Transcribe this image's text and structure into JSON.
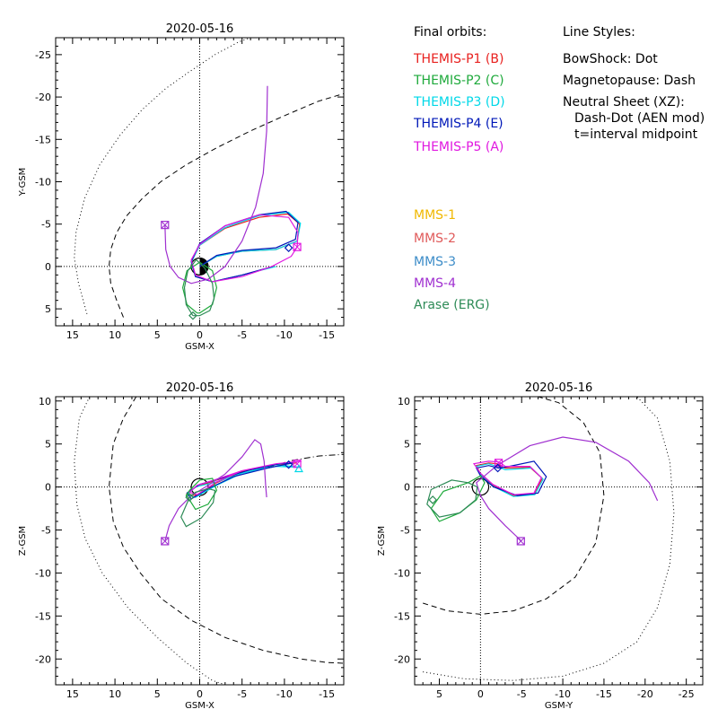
{
  "legend": {
    "orbits_title": "Final orbits:",
    "styles_title": "Line Styles:",
    "orbits": [
      {
        "label": "THEMIS-P1 (B)",
        "color": "#e8201e"
      },
      {
        "label": "THEMIS-P2 (C)",
        "color": "#1faa3c"
      },
      {
        "label": "THEMIS-P3 (D)",
        "color": "#00d8e8"
      },
      {
        "label": "THEMIS-P4 (E)",
        "color": "#0018b8"
      },
      {
        "label": "THEMIS-P5 (A)",
        "color": "#e018e0"
      }
    ],
    "styles": [
      "BowShock: Dot",
      "Magnetopause: Dash",
      "Neutral Sheet (XZ):",
      "Dash-Dot (AEN mod)",
      "t=interval midpoint"
    ],
    "missions": [
      {
        "label": "MMS-1",
        "color": "#f0b800"
      },
      {
        "label": "MMS-2",
        "color": "#e05a5a"
      },
      {
        "label": "MMS-3",
        "color": "#3c8cc8"
      },
      {
        "label": "MMS-4",
        "color": "#a030d0"
      },
      {
        "label": "Arase (ERG)",
        "color": "#2e8b57"
      }
    ]
  },
  "chart_data": [
    {
      "type": "line",
      "title": "2020-05-16",
      "xlabel": "GSM-X",
      "ylabel": "Y-GSM",
      "xlim": [
        17,
        -17
      ],
      "ylim": [
        7,
        -27
      ],
      "xticks": [
        15,
        10,
        5,
        0,
        -5,
        -10,
        -15
      ],
      "yticks": [
        5,
        0,
        -5,
        -10,
        -15,
        -20,
        -25
      ],
      "grid": "zero-lines dotted",
      "earth": {
        "radius": 1,
        "shaded": true
      },
      "boundaries": [
        {
          "name": "BowShock",
          "style": "dot",
          "x": [
            13.3,
            14.3,
            14.8,
            14.6,
            13.6,
            11.8,
            9.4,
            6.8,
            4,
            1.2,
            -1.8,
            -4.6,
            -6
          ],
          "y": [
            5.6,
            2,
            -1,
            -4,
            -8,
            -12,
            -15.5,
            -18.5,
            -21,
            -23,
            -25,
            -26.5,
            -27
          ]
        },
        {
          "name": "Magnetopause",
          "style": "dash",
          "x": [
            9,
            9.8,
            10.5,
            10.7,
            10.5,
            9.8,
            8.6,
            6.8,
            4.6,
            1.6,
            -2,
            -6,
            -10,
            -14,
            -17
          ],
          "y": [
            6,
            4,
            2,
            0,
            -2,
            -4,
            -6,
            -8,
            -10,
            -12,
            -14,
            -16,
            -17.8,
            -19.5,
            -20.4
          ]
        }
      ],
      "series": [
        {
          "name": "THEMIS-P1 (B)",
          "color": "#e8201e",
          "x": [
            -8.8,
            -5,
            -1.5,
            0.5,
            1,
            0,
            -3,
            -7,
            -10.4,
            -11.8,
            -11.5,
            -9,
            -5,
            -2,
            0
          ],
          "y": [
            0,
            1,
            1.8,
            1.2,
            -0.5,
            -2.5,
            -4.5,
            -5.8,
            -6.2,
            -5,
            -3,
            -2,
            -1.8,
            -1.2,
            0
          ]
        },
        {
          "name": "THEMIS-P2 (C)",
          "color": "#1faa3c",
          "x": [
            0.3,
            1.5,
            2,
            1.5,
            0,
            -1.5,
            -2,
            -1.5,
            0,
            0.3
          ],
          "y": [
            5.5,
            4.5,
            2.5,
            0.5,
            -0.5,
            0.5,
            2.5,
            4.5,
            5.5,
            5.5
          ]
        },
        {
          "name": "THEMIS-P3 (D)",
          "color": "#00d8e8",
          "x": [
            -9,
            -5,
            -1.5,
            0.5,
            1,
            0,
            -3,
            -7,
            -10.5,
            -11.9,
            -11.5,
            -9,
            -5,
            -2,
            0
          ],
          "y": [
            0,
            1,
            1.8,
            1.2,
            -0.5,
            -2.5,
            -4.6,
            -6,
            -6.4,
            -5.1,
            -3,
            -2,
            -1.8,
            -1.2,
            0
          ]
        },
        {
          "name": "THEMIS-P4 (E)",
          "color": "#0018b8",
          "x": [
            -8.6,
            -5,
            -1.5,
            0.5,
            1,
            0,
            -3,
            -7,
            -10.2,
            -11.6,
            -11.3,
            -9,
            -5,
            -2,
            0
          ],
          "y": [
            0,
            1,
            1.8,
            1.2,
            -0.6,
            -2.7,
            -4.8,
            -6.1,
            -6.5,
            -5.2,
            -3.2,
            -2.2,
            -1.9,
            -1.3,
            0
          ]
        },
        {
          "name": "THEMIS-P5 (A)",
          "color": "#e018e0",
          "x": [
            -11.5,
            -11.6,
            -10.5,
            -7,
            -3,
            0,
            1,
            0.5,
            -1.5,
            -5,
            -8.5,
            -10.8,
            -11.5
          ],
          "y": [
            -2.3,
            -4,
            -5.8,
            -6.1,
            -4.8,
            -2.6,
            -0.8,
            1,
            1.8,
            1.2,
            0,
            -1.2,
            -2.3
          ]
        },
        {
          "name": "MMS-4",
          "color": "#a030d0",
          "x": [
            4.1,
            4,
            3.5,
            2.5,
            1,
            -1,
            -3,
            -5,
            -6.6,
            -7.5,
            -7.9,
            -8
          ],
          "y": [
            -4.9,
            -2,
            0,
            1.3,
            2,
            1.5,
            0,
            -3,
            -7,
            -11,
            -16,
            -21.3
          ]
        },
        {
          "name": "Arase (ERG)",
          "color": "#2e8b57",
          "x": [
            0.8,
            1.6,
            1.8,
            1.4,
            0.4,
            -0.6,
            -1.5,
            -1.7,
            -1.2,
            0,
            0.8
          ],
          "y": [
            5.8,
            4.5,
            2.5,
            0.5,
            -0.8,
            0.2,
            2,
            3.8,
            5.2,
            5.8,
            5.8
          ]
        }
      ],
      "markers": [
        {
          "series": "MMS-4",
          "symbol": "square",
          "x": 4.1,
          "y": -4.9
        },
        {
          "series": "THEMIS-P5 (A)",
          "symbol": "square",
          "x": -11.5,
          "y": -2.3
        },
        {
          "series": "THEMIS-P4 (E)",
          "symbol": "diamond",
          "x": -10.5,
          "y": -2.2
        },
        {
          "series": "Arase (ERG)",
          "symbol": "diamond",
          "x": 0.8,
          "y": 5.8
        }
      ]
    },
    {
      "type": "line",
      "title": "2020-05-16",
      "xlabel": "GSM-X",
      "ylabel": "Z-GSM",
      "xlim": [
        17,
        -17
      ],
      "ylim": [
        -23,
        10.5
      ],
      "xticks": [
        15,
        10,
        5,
        0,
        -5,
        -10,
        -15
      ],
      "yticks": [
        10,
        5,
        0,
        -5,
        -10,
        -15,
        -20
      ],
      "grid": "zero-lines dotted",
      "earth": {
        "radius": 1,
        "shaded": false
      },
      "boundaries": [
        {
          "name": "BowShock",
          "style": "dot",
          "x": [
            13,
            14.2,
            14.8,
            14.5,
            13.5,
            11.5,
            8.5,
            5,
            1.5,
            -1.5,
            -3
          ],
          "y": [
            10.5,
            8,
            3,
            -2,
            -6,
            -10,
            -14,
            -17.5,
            -20.5,
            -22.5,
            -23
          ]
        },
        {
          "name": "Magnetopause",
          "style": "dash",
          "x": [
            7.5,
            9,
            10.2,
            10.7,
            10.2,
            9,
            7,
            4.5,
            1,
            -3,
            -7.5,
            -12,
            -15,
            -17
          ],
          "y": [
            10.5,
            8,
            5,
            0,
            -4,
            -7,
            -10,
            -13,
            -15.5,
            -17.5,
            -19,
            -20,
            -20.4,
            -20.5
          ]
        },
        {
          "name": "Neutral Sheet",
          "style": "dashdot",
          "x": [
            -8,
            -11,
            -14,
            -17
          ],
          "y": [
            2.3,
            3.1,
            3.6,
            3.8
          ]
        }
      ],
      "series": [
        {
          "name": "THEMIS-P1 (B)",
          "color": "#e8201e",
          "x": [
            -11.5,
            -9,
            -5,
            -2,
            0.5,
            1.5,
            0.5,
            -2,
            -5,
            -9,
            -11.5
          ],
          "y": [
            2.8,
            2.6,
            1.8,
            0.5,
            -1,
            -0.8,
            0,
            0.8,
            1.8,
            2.6,
            2.8
          ]
        },
        {
          "name": "THEMIS-P3 (D)",
          "color": "#00d8e8",
          "x": [
            -11.8,
            -9,
            -5,
            -2,
            0.5,
            1.5,
            0.5,
            -2,
            -5,
            -9,
            -11.8
          ],
          "y": [
            2.3,
            2.4,
            1.6,
            0.2,
            -1.2,
            -0.9,
            0,
            0.6,
            1.6,
            2.6,
            2.3
          ]
        },
        {
          "name": "THEMIS-P4 (E)",
          "color": "#0018b8",
          "x": [
            -11,
            -8,
            -4,
            -1,
            1,
            1.5,
            0,
            -2.5,
            -6,
            -9.5,
            -11
          ],
          "y": [
            2.8,
            2.2,
            1.2,
            -0.2,
            -1.4,
            -0.7,
            0.3,
            1,
            2,
            2.7,
            2.8
          ]
        },
        {
          "name": "THEMIS-P5 (A)",
          "color": "#e018e0",
          "x": [
            -12,
            -9,
            -5,
            -2,
            0.3,
            1.2,
            0.3,
            -2,
            -5,
            -9,
            -12
          ],
          "y": [
            3,
            2.7,
            1.9,
            0.6,
            -0.9,
            -0.6,
            0.2,
            0.9,
            1.9,
            2.7,
            3
          ]
        },
        {
          "name": "THEMIS-P2 (C)",
          "color": "#1faa3c",
          "x": [
            1.4,
            0.5,
            -1,
            -2,
            -1.5,
            0,
            1.2,
            1.6,
            1.4
          ],
          "y": [
            -1.2,
            -2.6,
            -2,
            -0.4,
            1,
            0.8,
            -0.4,
            -1,
            -1.2
          ]
        },
        {
          "name": "MMS-4",
          "color": "#a030d0",
          "x": [
            4.1,
            3.6,
            2.5,
            1,
            -1,
            -3,
            -5,
            -6.5,
            -7.2,
            -7.6,
            -7.8,
            -7.9
          ],
          "y": [
            -6.3,
            -4.5,
            -2.5,
            -1,
            0.2,
            1.5,
            3.5,
            5.5,
            5,
            3,
            0,
            -1.2
          ]
        },
        {
          "name": "Arase (ERG)",
          "color": "#2e8b57",
          "x": [
            1.2,
            2.2,
            1.6,
            -0.2,
            -1.6,
            -1.8,
            -1,
            0.5,
            1.2
          ],
          "y": [
            -1.2,
            -3.5,
            -4.6,
            -3.6,
            -1.8,
            -0.4,
            -0.2,
            -0.6,
            -1.2
          ]
        }
      ],
      "markers": [
        {
          "series": "MMS-4",
          "symbol": "square",
          "x": 4.1,
          "y": -6.3
        },
        {
          "series": "THEMIS-P5 (A)",
          "symbol": "square",
          "x": -11.5,
          "y": 2.7
        },
        {
          "series": "THEMIS-P4 (E)",
          "symbol": "diamond",
          "x": -10.5,
          "y": 2.6
        },
        {
          "series": "THEMIS-P3 (D)",
          "symbol": "triangle",
          "x": -11.7,
          "y": 2.1
        },
        {
          "series": "Arase (ERG)",
          "symbol": "diamond",
          "x": 1.2,
          "y": -1.2
        }
      ]
    },
    {
      "type": "line",
      "title": "2020-05-16",
      "xlabel": "GSM-Y",
      "ylabel": "Z-GSM",
      "xlim": [
        8,
        -27
      ],
      "ylim": [
        -23,
        10.5
      ],
      "xticks": [
        5,
        0,
        -5,
        -10,
        -15,
        -20,
        -25
      ],
      "yticks": [
        10,
        5,
        0,
        -5,
        -10,
        -15,
        -20
      ],
      "grid": "zero-lines dotted",
      "earth": {
        "radius": 1,
        "shaded": false
      },
      "boundaries": [
        {
          "name": "BowShock",
          "style": "dot",
          "x": [
            7,
            2,
            -4,
            -10,
            -15,
            -19,
            -21.5,
            -23,
            -23.5,
            -23,
            -21.5,
            -19
          ],
          "y": [
            -21.5,
            -22.3,
            -22.5,
            -22,
            -20.5,
            -18,
            -14,
            -9,
            -3,
            3,
            8,
            10.5
          ]
        },
        {
          "name": "Magnetopause",
          "style": "dash",
          "x": [
            7,
            4,
            0,
            -4,
            -8,
            -11.5,
            -14,
            -15,
            -14.5,
            -12.5,
            -9.5,
            -7
          ],
          "y": [
            -13.5,
            -14.4,
            -14.8,
            -14.4,
            -13,
            -10.5,
            -6.5,
            -1,
            4,
            7.5,
            9.8,
            10.5
          ]
        }
      ],
      "series": [
        {
          "name": "THEMIS-P1 (B)",
          "color": "#e8201e",
          "x": [
            -2,
            -3,
            -6,
            -7.5,
            -6.5,
            -4,
            -1.5,
            0,
            0.5,
            -1,
            -2
          ],
          "y": [
            2.7,
            2.2,
            2.3,
            1,
            -0.8,
            -1,
            0.2,
            1.5,
            2.5,
            2.8,
            2.7
          ]
        },
        {
          "name": "THEMIS-P3 (D)",
          "color": "#00d8e8",
          "x": [
            -2,
            -3,
            -6.2,
            -7.6,
            -6.6,
            -4,
            -1.5,
            0,
            0.5,
            -1,
            -2
          ],
          "y": [
            2.4,
            2,
            2.2,
            0.9,
            -0.9,
            -1.1,
            0.1,
            1.4,
            2.4,
            2.7,
            2.4
          ]
        },
        {
          "name": "THEMIS-P4 (E)",
          "color": "#0018b8",
          "x": [
            -2.2,
            -3.5,
            -6.5,
            -8,
            -7,
            -4.5,
            -1.6,
            0,
            0.5,
            -1,
            -2.2
          ],
          "y": [
            2.2,
            2.4,
            3,
            1.2,
            -0.7,
            -1,
            0,
            1.3,
            2.2,
            2.5,
            2.2
          ]
        },
        {
          "name": "THEMIS-P5 (A)",
          "color": "#e018e0",
          "x": [
            -2.3,
            -3,
            -6,
            -7.4,
            -6.5,
            -4,
            -1.5,
            0,
            0.8,
            -1,
            -2.3
          ],
          "y": [
            2.9,
            2.4,
            2.4,
            1.1,
            -0.7,
            -0.9,
            0.3,
            1.6,
            2.7,
            3,
            2.9
          ]
        },
        {
          "name": "THEMIS-P2 (C)",
          "color": "#1faa3c",
          "x": [
            1.5,
            4.5,
            6,
            5,
            2.5,
            0.5,
            -0.5,
            0,
            1.5
          ],
          "y": [
            0.5,
            -0.5,
            -2.5,
            -4,
            -3,
            -1.5,
            0.5,
            1.3,
            0.5
          ]
        },
        {
          "name": "MMS-4",
          "color": "#a030d0",
          "x": [
            -5,
            -3,
            -1,
            0,
            0.5,
            -2,
            -6,
            -10,
            -14,
            -18,
            -20.5,
            -21.5
          ],
          "y": [
            -6.3,
            -4.5,
            -2.5,
            -1,
            0.5,
            2.5,
            4.8,
            5.8,
            5.2,
            3,
            0.5,
            -1.6
          ]
        },
        {
          "name": "Arase (ERG)",
          "color": "#2e8b57",
          "x": [
            1.5,
            3.5,
            6,
            6.5,
            5,
            2.5,
            0.6,
            0.4,
            1.5
          ],
          "y": [
            0.5,
            0.8,
            -0.3,
            -2,
            -3.5,
            -3,
            -1.5,
            0,
            0.5
          ]
        }
      ],
      "markers": [
        {
          "series": "MMS-4",
          "symbol": "square",
          "x": -4.9,
          "y": -6.3
        },
        {
          "series": "THEMIS-P5 (A)",
          "symbol": "square",
          "x": -2.2,
          "y": 2.8
        },
        {
          "series": "THEMIS-P4 (E)",
          "symbol": "diamond",
          "x": -2.1,
          "y": 2.2
        },
        {
          "series": "Arase (ERG)",
          "symbol": "diamond",
          "x": 5.8,
          "y": -1.5
        }
      ]
    }
  ]
}
